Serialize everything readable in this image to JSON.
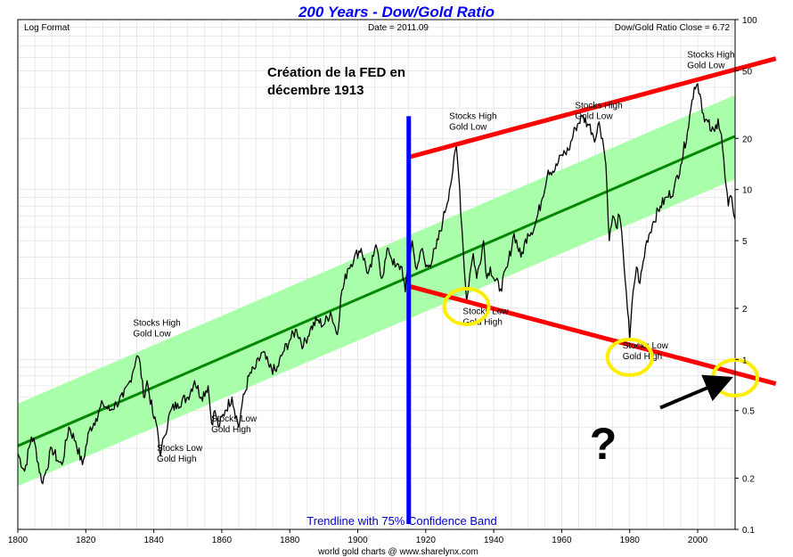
{
  "chart_data": {
    "type": "line",
    "title": "200 Years - Dow/Gold Ratio",
    "header_left": "Log Format",
    "header_center": "Date = 2011.09",
    "header_right": "Dow/Gold Ratio Close = 6.72",
    "footer": "world gold charts  @ www.sharelynx.com",
    "band_label": "Trendline with 75% Confidence Band",
    "fed_annotation": [
      "Création de la FED en",
      "décembre 1913"
    ],
    "question_mark": "?",
    "x_range": [
      1800,
      2011
    ],
    "x_ticks": [
      1800,
      1820,
      1840,
      1860,
      1880,
      1900,
      1920,
      1940,
      1960,
      1980,
      2000
    ],
    "y_scale": "log",
    "y_range": [
      0.1,
      100
    ],
    "y_ticks": [
      0.1,
      0.2,
      0.5,
      1,
      2,
      5,
      10,
      20,
      50,
      100
    ],
    "y_tick_labels": [
      "0.1",
      "0.2",
      "0.5",
      "1",
      "2",
      "5",
      "10",
      "20",
      "50",
      "100"
    ],
    "grid": true,
    "series": [
      {
        "values": [
          [
            1800,
            0.28
          ],
          [
            1802,
            0.22
          ],
          [
            1804,
            0.35
          ],
          [
            1805,
            0.32
          ],
          [
            1807,
            0.19
          ],
          [
            1808,
            0.21
          ],
          [
            1810,
            0.3
          ],
          [
            1812,
            0.25
          ],
          [
            1813,
            0.24
          ],
          [
            1815,
            0.4
          ],
          [
            1817,
            0.33
          ],
          [
            1819,
            0.24
          ],
          [
            1821,
            0.38
          ],
          [
            1823,
            0.45
          ],
          [
            1825,
            0.55
          ],
          [
            1827,
            0.5
          ],
          [
            1829,
            0.55
          ],
          [
            1831,
            0.6
          ],
          [
            1833,
            0.75
          ],
          [
            1835,
            1.05
          ],
          [
            1836,
            0.95
          ],
          [
            1837,
            0.6
          ],
          [
            1838,
            0.75
          ],
          [
            1840,
            0.45
          ],
          [
            1841,
            0.4
          ],
          [
            1842,
            0.27
          ],
          [
            1843,
            0.35
          ],
          [
            1845,
            0.5
          ],
          [
            1847,
            0.55
          ],
          [
            1850,
            0.6
          ],
          [
            1852,
            0.75
          ],
          [
            1854,
            0.6
          ],
          [
            1856,
            0.7
          ],
          [
            1857,
            0.42
          ],
          [
            1858,
            0.5
          ],
          [
            1859,
            0.4
          ],
          [
            1861,
            0.5
          ],
          [
            1863,
            0.6
          ],
          [
            1865,
            0.4
          ],
          [
            1866,
            0.55
          ],
          [
            1868,
            0.8
          ],
          [
            1870,
            0.9
          ],
          [
            1872,
            1.1
          ],
          [
            1874,
            0.9
          ],
          [
            1876,
            0.85
          ],
          [
            1878,
            1.1
          ],
          [
            1880,
            1.3
          ],
          [
            1882,
            1.5
          ],
          [
            1884,
            1.2
          ],
          [
            1886,
            1.5
          ],
          [
            1888,
            1.7
          ],
          [
            1890,
            1.6
          ],
          [
            1892,
            1.9
          ],
          [
            1894,
            1.4
          ],
          [
            1895,
            2.3
          ],
          [
            1897,
            3.4
          ],
          [
            1899,
            4.0
          ],
          [
            1901,
            4.5
          ],
          [
            1903,
            3.2
          ],
          [
            1904,
            3.5
          ],
          [
            1905,
            4.5
          ],
          [
            1906,
            4.2
          ],
          [
            1907,
            3.0
          ],
          [
            1909,
            4.5
          ],
          [
            1911,
            3.5
          ],
          [
            1913,
            3.5
          ],
          [
            1914,
            2.5
          ],
          [
            1915,
            3.8
          ],
          [
            1916,
            5.0
          ],
          [
            1917,
            3.5
          ],
          [
            1918,
            3.8
          ],
          [
            1919,
            4.5
          ],
          [
            1920,
            3.5
          ],
          [
            1921,
            3.6
          ],
          [
            1923,
            4.5
          ],
          [
            1925,
            6.5
          ],
          [
            1927,
            10.0
          ],
          [
            1928,
            13.0
          ],
          [
            1929,
            18.0
          ],
          [
            1930,
            10.0
          ],
          [
            1931,
            4.5
          ],
          [
            1932,
            2.2
          ],
          [
            1933,
            3.2
          ],
          [
            1934,
            4.2
          ],
          [
            1935,
            3.0
          ],
          [
            1937,
            5.0
          ],
          [
            1938,
            3.0
          ],
          [
            1939,
            3.5
          ],
          [
            1940,
            3.0
          ],
          [
            1942,
            2.6
          ],
          [
            1944,
            3.5
          ],
          [
            1946,
            5.5
          ],
          [
            1948,
            4.0
          ],
          [
            1950,
            5.5
          ],
          [
            1952,
            6.0
          ],
          [
            1954,
            8.5
          ],
          [
            1956,
            13.0
          ],
          [
            1958,
            13.0
          ],
          [
            1960,
            16.0
          ],
          [
            1962,
            17.0
          ],
          [
            1964,
            23.0
          ],
          [
            1966,
            27.0
          ],
          [
            1968,
            24.0
          ],
          [
            1970,
            20.0
          ],
          [
            1971,
            25.0
          ],
          [
            1972,
            20.0
          ],
          [
            1973,
            14.0
          ],
          [
            1974,
            5.0
          ],
          [
            1975,
            7.0
          ],
          [
            1976,
            6.0
          ],
          [
            1977,
            7.0
          ],
          [
            1978,
            4.5
          ],
          [
            1979,
            2.5
          ],
          [
            1980,
            1.3
          ],
          [
            1981,
            2.5
          ],
          [
            1982,
            3.5
          ],
          [
            1983,
            2.8
          ],
          [
            1985,
            5.0
          ],
          [
            1987,
            6.5
          ],
          [
            1989,
            8.0
          ],
          [
            1991,
            9.0
          ],
          [
            1993,
            10.0
          ],
          [
            1995,
            14.0
          ],
          [
            1997,
            22.0
          ],
          [
            1998,
            30.0
          ],
          [
            1999,
            40.0
          ],
          [
            2000,
            42.0
          ],
          [
            2001,
            34.0
          ],
          [
            2002,
            25.0
          ],
          [
            2003,
            25.0
          ],
          [
            2004,
            22.0
          ],
          [
            2005,
            22.0
          ],
          [
            2006,
            26.0
          ],
          [
            2007,
            21.0
          ],
          [
            2008,
            12.0
          ],
          [
            2009,
            8.0
          ],
          [
            2010,
            9.0
          ],
          [
            2011,
            6.72
          ]
        ]
      }
    ],
    "trendline": {
      "start": [
        1800,
        0.31
      ],
      "end": [
        2011,
        20.6
      ]
    },
    "confidence_band": {
      "upper": {
        "start": [
          1800,
          0.55
        ],
        "end": [
          2011,
          36.0
        ]
      },
      "lower": {
        "start": [
          1800,
          0.18
        ],
        "end": [
          2011,
          11.5
        ]
      }
    },
    "channel_upper": {
      "start": [
        1915,
        15.5
      ],
      "end": [
        2023,
        59.0
      ]
    },
    "channel_lower": {
      "start": [
        1915,
        2.7
      ],
      "end": [
        2023,
        0.72
      ]
    },
    "fed_line": {
      "x": 1915,
      "y_range": [
        0.1,
        27
      ]
    },
    "annotations": [
      {
        "lines": [
          "Stocks High",
          "Gold Low"
        ],
        "x": 1836,
        "y": 1.58
      },
      {
        "lines": [
          "Stocks Low",
          "Gold High"
        ],
        "x": 1843,
        "y": 0.29
      },
      {
        "lines": [
          "Stocks Low",
          "Gold High"
        ],
        "x": 1859,
        "y": 0.43
      },
      {
        "lines": [
          "Stocks High",
          "Gold Low"
        ],
        "x": 1929,
        "y": 26.0
      },
      {
        "lines": [
          "Stocks Low",
          "Gold High"
        ],
        "x": 1933,
        "y": 1.85
      },
      {
        "lines": [
          "Stocks High",
          "Gold Low"
        ],
        "x": 1966,
        "y": 30.0
      },
      {
        "lines": [
          "Stocks Low",
          "Gold High"
        ],
        "x": 1980,
        "y": 1.16
      },
      {
        "lines": [
          "Stocks High",
          "Gold Low"
        ],
        "x": 1999,
        "y": 60.0
      }
    ],
    "circles": [
      {
        "x": 1932,
        "y": 2.05
      },
      {
        "x": 1980,
        "y": 1.03
      },
      {
        "x": 2011,
        "y": 0.78
      }
    ],
    "arrow": {
      "from": [
        1989,
        0.52
      ],
      "to": [
        2008.5,
        0.76
      ]
    },
    "colors": {
      "title": "#0000ff",
      "series": "#000000",
      "trend": "#008800",
      "band": "#aaffaa",
      "channel": "#ff0000",
      "fed": "#0000ff",
      "circle": "#ffee00",
      "grid": "#dddddd",
      "band_label": "#0000cc"
    }
  }
}
